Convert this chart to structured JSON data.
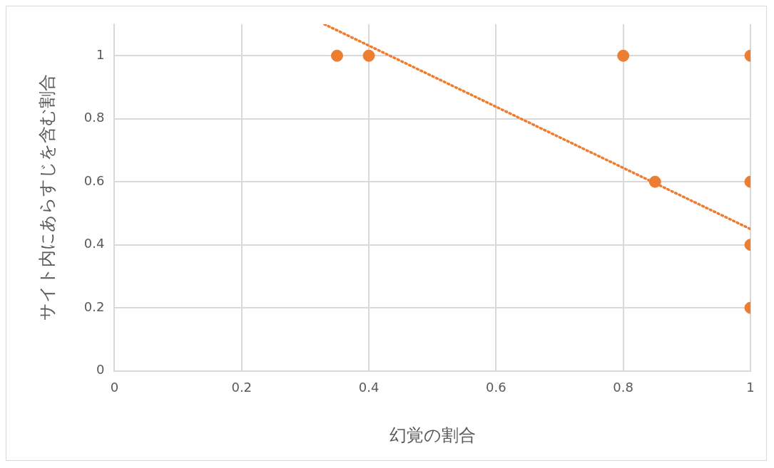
{
  "chart_data": {
    "type": "scatter",
    "xlabel": "幻覚の割合",
    "ylabel": "サイト内にあらすじを含む割合",
    "x": [
      0.35,
      0.4,
      0.8,
      0.85,
      1,
      1,
      1,
      1
    ],
    "series": [
      {
        "type": "scatter",
        "color": "#ed7d31",
        "values": [
          1,
          1,
          1,
          0.6,
          1,
          0.6,
          0.4,
          0.2
        ],
        "marker": "circle"
      },
      {
        "type": "line",
        "color": "#ed7d31",
        "x": [
          0.33,
          1
        ],
        "values": [
          1.1,
          0.45
        ],
        "line_style": "dotted",
        "marker": "none"
      }
    ],
    "xlim": [
      0,
      1
    ],
    "xticks": [
      0,
      0.2,
      0.4,
      0.6,
      0.8,
      1
    ],
    "ylim": [
      0,
      1.1
    ],
    "yticks": [
      0,
      0.2,
      0.4,
      0.6,
      0.8,
      1
    ],
    "grid": true,
    "legend": false
  }
}
